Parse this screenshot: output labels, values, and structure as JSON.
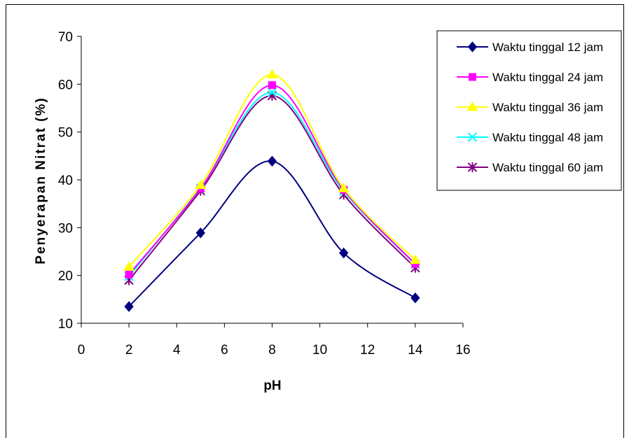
{
  "chart_data": {
    "type": "line",
    "xlabel": "pH",
    "ylabel": "Penyerapan Nitrat (%)",
    "xlim": [
      0,
      16
    ],
    "ylim": [
      10,
      70
    ],
    "xticks": [
      0,
      2,
      4,
      6,
      8,
      10,
      12,
      14,
      16
    ],
    "yticks": [
      10,
      20,
      30,
      40,
      50,
      60,
      70
    ],
    "grid": false,
    "legend_position": "top-right",
    "x": [
      2,
      5,
      8,
      11,
      14
    ],
    "series": [
      {
        "name": "Waktu tinggal 12 jam",
        "values": [
          13.5,
          28.9,
          43.9,
          24.7,
          15.3
        ],
        "color": "#000080",
        "marker": "diamond"
      },
      {
        "name": "Waktu tinggal 24 jam",
        "values": [
          20.2,
          38.2,
          59.8,
          37.9,
          22.4
        ],
        "color": "#ff00ff",
        "marker": "square"
      },
      {
        "name": "Waktu tinggal 36 jam",
        "values": [
          21.8,
          38.9,
          62.0,
          38.2,
          23.2
        ],
        "color": "#ffff00",
        "marker": "triangle"
      },
      {
        "name": "Waktu tinggal 48 jam",
        "values": [
          19.8,
          38.3,
          58.3,
          37.6,
          22.3
        ],
        "color": "#00ffff",
        "marker": "x"
      },
      {
        "name": "Waktu tinggal 60 jam",
        "values": [
          19.0,
          37.7,
          57.6,
          36.9,
          21.6
        ],
        "color": "#800080",
        "marker": "star"
      }
    ]
  }
}
